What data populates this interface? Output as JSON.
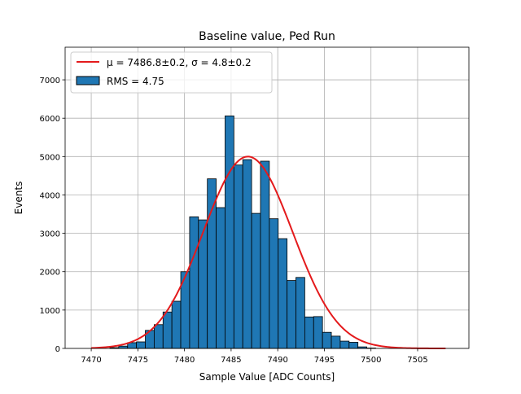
{
  "chart_data": {
    "type": "bar",
    "title": "Baseline value, Ped Run",
    "xlabel": "Sample Value [ADC Counts]",
    "ylabel": "Events",
    "xlim": [
      7467.2,
      7510.5
    ],
    "ylim": [
      0,
      7850
    ],
    "grid": true,
    "legend_position": "top-left",
    "xticks": [
      7470,
      7475,
      7480,
      7485,
      7490,
      7495,
      7500,
      7505
    ],
    "yticks": [
      0,
      1000,
      2000,
      3000,
      4000,
      5000,
      6000,
      7000
    ],
    "histogram": {
      "name": "RMS = 4.75",
      "color": "#1f77b4",
      "edge_color": "#000000",
      "bin_start": 7472,
      "bin_width": 0.95,
      "counts": [
        20,
        60,
        150,
        170,
        470,
        620,
        950,
        1230,
        2000,
        3430,
        3350,
        4420,
        3670,
        6060,
        4780,
        4920,
        3520,
        4880,
        3380,
        2860,
        1770,
        1850,
        820,
        830,
        420,
        320,
        190,
        160,
        40,
        10
      ]
    },
    "fit": {
      "name": "μ = 7486.8±0.2, σ = 4.8±0.2",
      "color": "#e41a1c",
      "mu": 7486.8,
      "sigma": 4.8,
      "amplitude": 5000,
      "x_range": [
        7470,
        7508
      ]
    }
  }
}
